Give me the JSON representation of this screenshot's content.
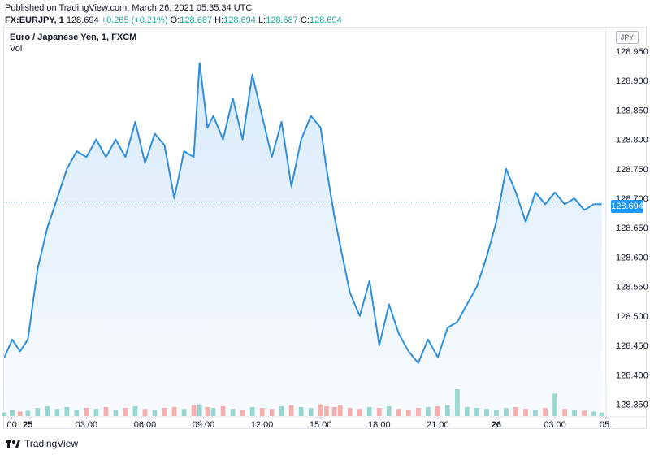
{
  "header": {
    "published": "Published on TradingView.com, March 26, 2021 05:35:34 UTC",
    "symbol": "FX:EURJPY, 1",
    "last": "128.694",
    "change": "+0.265 (+0.21%)",
    "o_label": "O:",
    "o_value": "128.687",
    "h_label": "H:",
    "h_value": "128.694",
    "l_label": "L:",
    "l_value": "128.687",
    "c_label": "C:",
    "c_value": "128.694"
  },
  "legend": {
    "title": "Euro / Japanese Yen, 1, FXCM",
    "volume_label": "Vol"
  },
  "currency": "JPY",
  "price_tag": "128.694",
  "brand": "TradingView",
  "colors": {
    "line": "#2f8fdc",
    "fill": "#d4e8fa",
    "up": "#26a69a",
    "down": "#ef5350",
    "tag": "#2196f3"
  },
  "chart_data": {
    "type": "area",
    "title": "Euro / Japanese Yen, 1, FXCM",
    "ylim": [
      128.33,
      128.99
    ],
    "yticks": [
      128.95,
      128.9,
      128.85,
      128.8,
      128.75,
      128.7,
      128.65,
      128.6,
      128.55,
      128.5,
      128.45,
      128.4,
      128.35
    ],
    "ytick_labels": [
      "128.950",
      "128.900",
      "128.850",
      "128.800",
      "128.750",
      "128.700",
      "128.650",
      "128.600",
      "128.550",
      "128.500",
      "128.450",
      "128.400",
      "128.350"
    ],
    "xlim": [
      -1.22,
      29.58
    ],
    "xticks": [
      -0.82,
      0,
      3,
      6,
      9,
      12,
      15,
      18,
      21,
      24,
      27,
      29.6
    ],
    "xtick_labels": [
      "00",
      "25",
      "03:00",
      "06:00",
      "09:00",
      "12:00",
      "15:00",
      "18:00",
      "21:00",
      "26",
      "03:00",
      "05:"
    ],
    "xtick_bold": [
      false,
      true,
      false,
      false,
      false,
      false,
      false,
      false,
      false,
      true,
      false,
      false
    ],
    "x_hours": [
      -1.2,
      -0.8,
      -0.4,
      0.0,
      0.5,
      1.0,
      1.5,
      2.0,
      2.5,
      3.0,
      3.5,
      4.0,
      4.5,
      5.0,
      5.5,
      6.0,
      6.5,
      7.0,
      7.5,
      8.0,
      8.5,
      8.8,
      9.2,
      9.5,
      10.0,
      10.5,
      11.0,
      11.5,
      12.0,
      12.5,
      13.0,
      13.5,
      14.0,
      14.5,
      15.0,
      15.3,
      15.7,
      16.0,
      16.5,
      17.0,
      17.5,
      18.0,
      18.5,
      19.0,
      19.5,
      20.0,
      20.5,
      21.0,
      21.5,
      22.0,
      22.5,
      23.0,
      23.5,
      24.0,
      24.5,
      25.0,
      25.5,
      26.0,
      26.5,
      27.0,
      27.5,
      28.0,
      28.5,
      29.0,
      29.4
    ],
    "price": [
      128.43,
      128.46,
      128.44,
      128.46,
      128.58,
      128.65,
      128.7,
      128.75,
      128.78,
      128.77,
      128.8,
      128.77,
      128.8,
      128.77,
      128.83,
      128.76,
      128.81,
      128.79,
      128.7,
      128.78,
      128.77,
      128.93,
      128.82,
      128.84,
      128.8,
      128.87,
      128.8,
      128.91,
      128.84,
      128.77,
      128.83,
      128.72,
      128.8,
      128.84,
      128.82,
      128.75,
      128.67,
      128.62,
      128.54,
      128.5,
      128.56,
      128.45,
      128.52,
      128.47,
      128.44,
      128.42,
      128.46,
      128.43,
      128.48,
      128.49,
      128.52,
      128.55,
      128.6,
      128.66,
      128.75,
      128.71,
      128.66,
      128.71,
      128.69,
      128.71,
      128.69,
      128.7,
      128.68,
      128.69,
      128.69
    ],
    "volume": [
      8,
      14,
      10,
      12,
      18,
      22,
      16,
      20,
      14,
      18,
      16,
      20,
      14,
      18,
      22,
      16,
      14,
      18,
      20,
      16,
      24,
      26,
      20,
      18,
      22,
      16,
      14,
      20,
      18,
      16,
      22,
      24,
      20,
      18,
      26,
      22,
      20,
      24,
      18,
      16,
      20,
      18,
      22,
      16,
      14,
      18,
      20,
      22,
      24,
      60,
      20,
      18,
      16,
      14,
      18,
      20,
      16,
      14,
      18,
      50,
      16,
      14,
      12,
      10,
      8
    ],
    "last_price": 128.694,
    "grid": false
  }
}
